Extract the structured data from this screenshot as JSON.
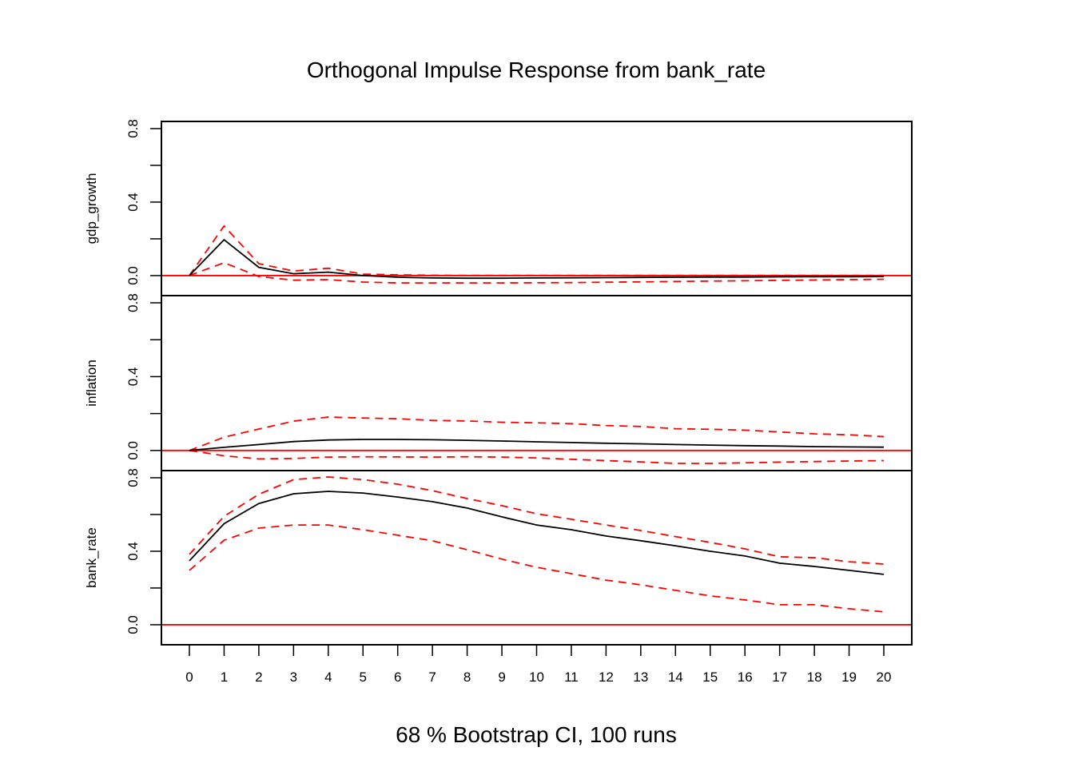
{
  "chart_data": {
    "type": "line",
    "title": "Orthogonal Impulse Response from bank_rate",
    "xlabel": "68 % Bootstrap CI,  100 runs",
    "x": [
      0,
      1,
      2,
      3,
      4,
      5,
      6,
      7,
      8,
      9,
      10,
      11,
      12,
      13,
      14,
      15,
      16,
      17,
      18,
      19,
      20
    ],
    "x_tick_labels": [
      "0",
      "1",
      "2",
      "3",
      "4",
      "5",
      "6",
      "7",
      "8",
      "9",
      "10",
      "11",
      "12",
      "13",
      "14",
      "15",
      "16",
      "17",
      "18",
      "19",
      "20"
    ],
    "ylim": [
      -0.109,
      0.839
    ],
    "y_ticks": [
      0.0,
      0.2,
      0.4,
      0.6,
      0.8
    ],
    "y_tick_labels": [
      "0.0",
      "",
      "0.4",
      "",
      "0.8"
    ],
    "zero_line_color": "#ff0000",
    "irf_color": "#000000",
    "ci_color": "#ff0000",
    "panels": [
      {
        "ylabel": "gdp_growth",
        "irf": [
          0.0,
          0.195,
          0.045,
          0.01,
          0.019,
          0.0,
          -0.009,
          -0.013,
          -0.014,
          -0.014,
          -0.013,
          -0.012,
          -0.011,
          -0.01,
          -0.009,
          -0.008,
          -0.008,
          -0.007,
          -0.006,
          -0.006,
          -0.005
        ],
        "upper": [
          0.0,
          0.27,
          0.065,
          0.025,
          0.04,
          0.008,
          0.004,
          0.002,
          0.001,
          0.001,
          0.001,
          0.001,
          0.001,
          0.001,
          0.001,
          0.001,
          0.001,
          0.001,
          0.001,
          0.001,
          0.001
        ],
        "lower": [
          0.0,
          0.07,
          -0.005,
          -0.025,
          -0.022,
          -0.035,
          -0.04,
          -0.04,
          -0.04,
          -0.04,
          -0.039,
          -0.038,
          -0.036,
          -0.034,
          -0.032,
          -0.03,
          -0.028,
          -0.026,
          -0.024,
          -0.022,
          -0.02
        ]
      },
      {
        "ylabel": "inflation",
        "irf": [
          0.0,
          0.017,
          0.032,
          0.048,
          0.057,
          0.06,
          0.06,
          0.058,
          0.055,
          0.051,
          0.047,
          0.043,
          0.039,
          0.036,
          0.032,
          0.029,
          0.026,
          0.024,
          0.021,
          0.019,
          0.018
        ],
        "upper": [
          0.0,
          0.072,
          0.116,
          0.159,
          0.181,
          0.176,
          0.172,
          0.163,
          0.16,
          0.153,
          0.15,
          0.145,
          0.135,
          0.13,
          0.118,
          0.115,
          0.11,
          0.1,
          0.09,
          0.085,
          0.075
        ],
        "lower": [
          0.0,
          -0.029,
          -0.046,
          -0.043,
          -0.036,
          -0.034,
          -0.035,
          -0.036,
          -0.034,
          -0.036,
          -0.04,
          -0.048,
          -0.055,
          -0.062,
          -0.07,
          -0.07,
          -0.067,
          -0.063,
          -0.06,
          -0.057,
          -0.055
        ]
      },
      {
        "ylabel": "bank_rate",
        "irf": [
          0.348,
          0.55,
          0.66,
          0.713,
          0.726,
          0.717,
          0.695,
          0.67,
          0.635,
          0.587,
          0.543,
          0.517,
          0.483,
          0.457,
          0.43,
          0.4,
          0.374,
          0.335,
          0.317,
          0.296,
          0.274
        ],
        "upper": [
          0.383,
          0.59,
          0.71,
          0.79,
          0.804,
          0.79,
          0.765,
          0.73,
          0.687,
          0.648,
          0.604,
          0.574,
          0.543,
          0.513,
          0.48,
          0.448,
          0.413,
          0.37,
          0.365,
          0.343,
          0.33
        ],
        "lower": [
          0.296,
          0.46,
          0.526,
          0.543,
          0.543,
          0.517,
          0.487,
          0.457,
          0.408,
          0.357,
          0.313,
          0.278,
          0.243,
          0.217,
          0.187,
          0.157,
          0.135,
          0.109,
          0.109,
          0.087,
          0.07
        ]
      }
    ]
  }
}
